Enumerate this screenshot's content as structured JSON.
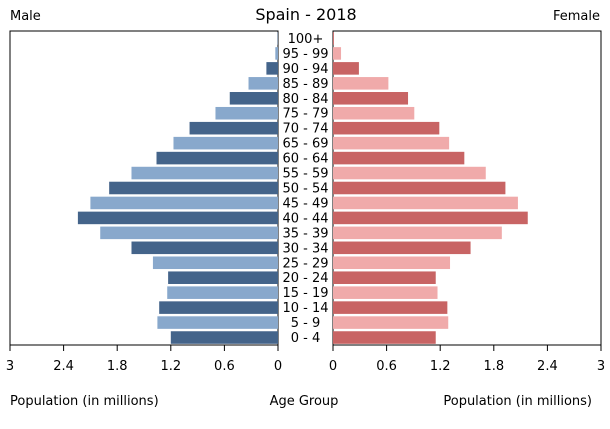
{
  "chart_data": {
    "type": "bar",
    "title": "Spain - 2018",
    "left_label": "Male",
    "right_label": "Female",
    "xlabel_left": "Population (in millions)",
    "xlabel_center": "Age Group",
    "xlabel_right": "Population (in millions)",
    "xlim": [
      0,
      3
    ],
    "xticks": [
      0,
      0.6,
      1.2,
      1.8,
      2.4,
      3
    ],
    "xtick_labels": [
      "0",
      "0.6",
      "1.2",
      "1.8",
      "2.4",
      "3"
    ],
    "categories": [
      "0 - 4",
      "5 - 9",
      "10 - 14",
      "15 - 19",
      "20 - 24",
      "25 - 29",
      "30 - 34",
      "35 - 39",
      "40 - 44",
      "45 - 49",
      "50 - 54",
      "55 - 59",
      "60 - 64",
      "65 - 69",
      "70 - 74",
      "75 - 79",
      "80 - 84",
      "85 - 89",
      "90 - 94",
      "95 - 99",
      "100+"
    ],
    "series": [
      {
        "name": "Male",
        "values": [
          1.2,
          1.35,
          1.33,
          1.24,
          1.23,
          1.4,
          1.64,
          1.99,
          2.24,
          2.1,
          1.89,
          1.64,
          1.36,
          1.17,
          0.99,
          0.7,
          0.54,
          0.33,
          0.13,
          0.03,
          0.005
        ]
      },
      {
        "name": "Female",
        "values": [
          1.15,
          1.29,
          1.28,
          1.17,
          1.15,
          1.31,
          1.54,
          1.89,
          2.18,
          2.07,
          1.93,
          1.71,
          1.47,
          1.3,
          1.19,
          0.91,
          0.84,
          0.62,
          0.29,
          0.09,
          0.01
        ]
      }
    ],
    "colors": {
      "male_dark": "#44648a",
      "male_light": "#88a8cc",
      "female_dark": "#c86464",
      "female_light": "#f0aaaa",
      "axis": "#000000"
    }
  }
}
